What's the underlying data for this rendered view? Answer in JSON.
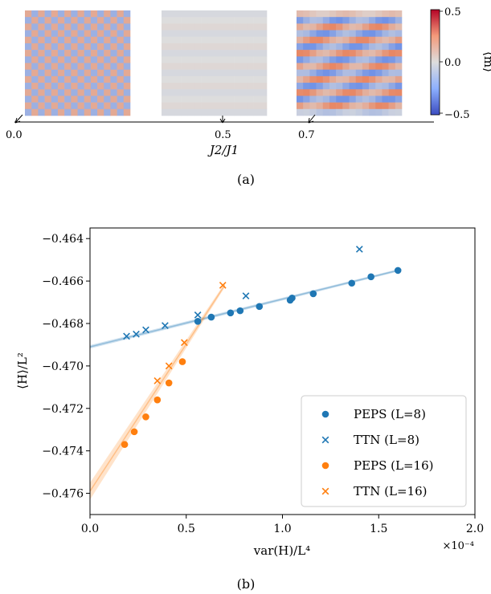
{
  "panel_a": {
    "caption": "(a)",
    "axis_label": "J2/J1",
    "ticks": [
      "0.0",
      "0.5",
      "0.7"
    ],
    "tick_values": [
      0.0,
      0.5,
      0.7
    ],
    "colorbar": {
      "label": "⟨m⟩",
      "ticks": [
        "0.5",
        "0.0",
        "−0.5"
      ],
      "range": [
        -0.5,
        0.5
      ],
      "colormap": "coolwarm"
    },
    "heatmaps": [
      {
        "name": "checkerboard",
        "pattern": "neel",
        "grid": 16,
        "amplitude": 0.18
      },
      {
        "name": "disordered",
        "pattern": "uniform",
        "grid": 16,
        "amplitude": 0.0
      },
      {
        "name": "stripes",
        "pattern": "stripe",
        "grid": 16,
        "amplitude": 0.3
      }
    ],
    "colors": {
      "pos": "#e8835f",
      "neg": "#6c8fe6",
      "mid": "#dddddd"
    }
  },
  "panel_b": {
    "caption": "(b)",
    "xlabel": "var(H)/L⁴",
    "ylabel": "⟨H⟩/L²",
    "x_multiplier": "×10⁻⁴",
    "xticks": [
      "0.0",
      "0.5",
      "1.0",
      "1.5",
      "2.0"
    ],
    "yticks": [
      "−0.464",
      "−0.466",
      "−0.468",
      "−0.470",
      "−0.472",
      "−0.474",
      "−0.476"
    ]
  },
  "chart_data": {
    "type": "scatter",
    "xlim": [
      0.0,
      2.0
    ],
    "ylim": [
      -0.477,
      -0.4635
    ],
    "x_scale_note": "×10⁻⁴",
    "grid": false,
    "legend_position": "lower-right",
    "series": [
      {
        "name": "PEPS (L=8)",
        "marker": "circle",
        "color": "#1f77b4",
        "x": [
          0.56,
          0.63,
          0.73,
          0.78,
          0.88,
          1.04,
          1.05,
          1.16,
          1.36,
          1.46,
          1.6
        ],
        "y": [
          -0.4679,
          -0.4677,
          -0.4675,
          -0.4674,
          -0.4672,
          -0.4669,
          -0.4668,
          -0.4666,
          -0.4661,
          -0.4658,
          -0.4655
        ]
      },
      {
        "name": "TTN (L=8)",
        "marker": "x",
        "color": "#1f77b4",
        "x": [
          0.19,
          0.24,
          0.29,
          0.39,
          0.56,
          0.81,
          1.4
        ],
        "y": [
          -0.4686,
          -0.4685,
          -0.4683,
          -0.4681,
          -0.4676,
          -0.4667,
          -0.4645
        ]
      },
      {
        "name": "PEPS (L=16)",
        "marker": "circle",
        "color": "#ff7f0e",
        "x": [
          0.18,
          0.23,
          0.29,
          0.35,
          0.41,
          0.48
        ],
        "y": [
          -0.4737,
          -0.4731,
          -0.4724,
          -0.4716,
          -0.4708,
          -0.4698
        ]
      },
      {
        "name": "TTN (L=16)",
        "marker": "x",
        "color": "#ff7f0e",
        "x": [
          0.35,
          0.41,
          0.49,
          0.69
        ],
        "y": [
          -0.4707,
          -0.47,
          -0.4689,
          -0.4662
        ]
      }
    ],
    "fits": [
      {
        "color": "#1f77b4",
        "x": [
          0.0,
          1.6
        ],
        "y": [
          -0.4691,
          -0.4655
        ],
        "band": 8e-05
      },
      {
        "color": "#ff7f0e",
        "x": [
          0.0,
          0.7
        ],
        "y": [
          -0.4759,
          -0.4662
        ],
        "band": 0.0004
      }
    ]
  }
}
